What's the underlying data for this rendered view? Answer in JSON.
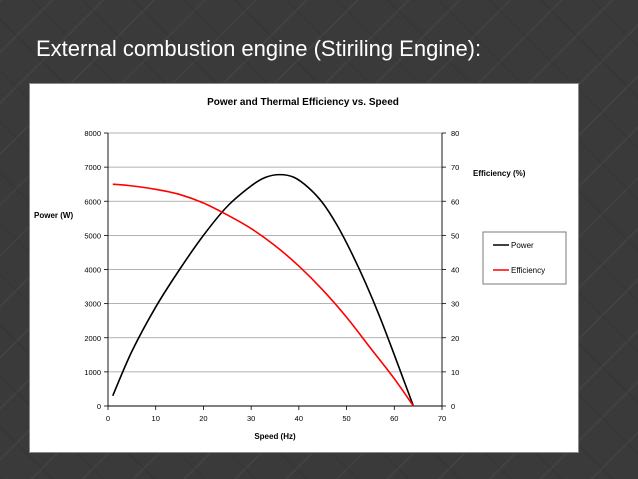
{
  "slide": {
    "title": "External combustion engine (Stiriling Engine):"
  },
  "chart_data": {
    "type": "line",
    "title": "Power and Thermal Efficiency vs. Speed",
    "xlabel": "Speed (Hz)",
    "ylabel": "Power (W)",
    "y2label": "Efficiency (%)",
    "xlim": [
      0,
      70
    ],
    "ylim": [
      0,
      8000
    ],
    "y2lim": [
      0,
      80
    ],
    "x_ticks": [
      "0",
      "10",
      "20",
      "30",
      "40",
      "50",
      "60",
      "70"
    ],
    "y_ticks": [
      "0",
      "1000",
      "2000",
      "3000",
      "4000",
      "5000",
      "6000",
      "7000",
      "8000"
    ],
    "y2_ticks": [
      "0",
      "10",
      "20",
      "30",
      "40",
      "50",
      "60",
      "70",
      "80"
    ],
    "grid": true,
    "legend_position": "right",
    "series": [
      {
        "name": "Power",
        "axis": "left",
        "color": "#000000",
        "x": [
          1,
          5,
          10,
          15,
          20,
          25,
          30,
          33,
          36,
          39,
          42,
          45,
          48,
          51,
          54,
          57,
          60,
          62,
          64
        ],
        "y": [
          300,
          1600,
          2900,
          4000,
          5000,
          5850,
          6450,
          6700,
          6780,
          6700,
          6400,
          5950,
          5300,
          4500,
          3600,
          2600,
          1500,
          750,
          0
        ]
      },
      {
        "name": "Efficiency",
        "axis": "right",
        "color": "#ff0000",
        "x": [
          1,
          5,
          10,
          15,
          20,
          25,
          30,
          35,
          40,
          45,
          50,
          55,
          60,
          64
        ],
        "y": [
          65,
          64.5,
          63.5,
          62,
          59.5,
          56,
          52,
          47,
          41,
          34,
          26,
          17,
          8,
          0
        ]
      }
    ]
  }
}
